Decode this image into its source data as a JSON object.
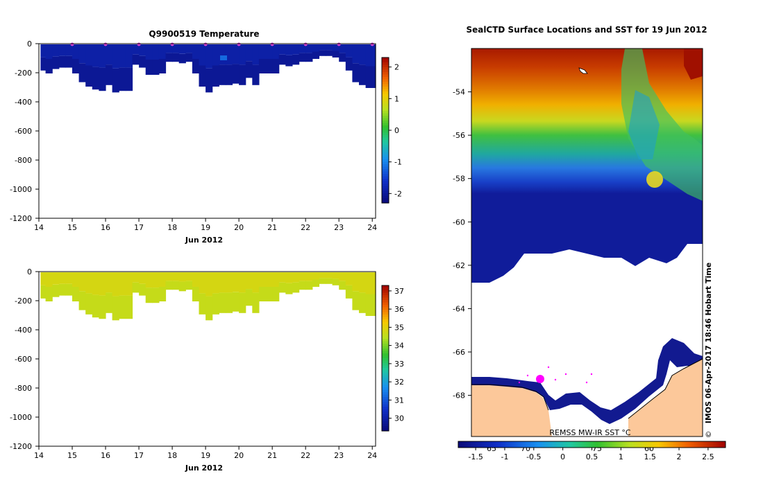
{
  "chart_data": [
    {
      "type": "heatmap",
      "title": "Q9900519  Temperature",
      "xlabel": "Jun 2012",
      "ylabel": "",
      "xlim": [
        14,
        24.1
      ],
      "ylim": [
        -1200,
        0
      ],
      "x_ticks": [
        "14",
        "15",
        "16",
        "17",
        "18",
        "19",
        "20",
        "21",
        "22",
        "23",
        "24"
      ],
      "y_ticks": [
        "0",
        "-200",
        "-400",
        "-600",
        "-800",
        "-1000",
        "-1200"
      ],
      "colorbar": {
        "range": [
          -2.3,
          2.3
        ],
        "ticks": [
          "2",
          "1",
          "0",
          "-1",
          "-2"
        ]
      },
      "profiles": {
        "day": [
          14.1,
          14.3,
          14.5,
          14.7,
          14.9,
          15.1,
          15.3,
          15.5,
          15.7,
          15.9,
          16.1,
          16.3,
          16.5,
          16.7,
          16.9,
          17.1,
          17.3,
          17.5,
          17.7,
          17.9,
          18.1,
          18.3,
          18.5,
          18.7,
          18.9,
          19.1,
          19.3,
          19.5,
          19.7,
          19.9,
          20.1,
          20.3,
          20.5,
          20.7,
          20.9,
          21.1,
          21.3,
          21.5,
          21.7,
          21.9,
          22.1,
          22.3,
          22.5,
          22.7,
          22.9,
          23.1,
          23.3,
          23.5,
          23.7,
          23.9,
          24.05
        ],
        "max_depth": [
          -180,
          -200,
          -170,
          -160,
          -160,
          -200,
          -260,
          -290,
          -310,
          -320,
          -280,
          -330,
          -320,
          -320,
          -140,
          -160,
          -210,
          -210,
          -200,
          -120,
          -120,
          -130,
          -120,
          -200,
          -290,
          -330,
          -290,
          -280,
          -280,
          -270,
          -280,
          -230,
          -280,
          -200,
          -200,
          -200,
          -140,
          -150,
          -140,
          -120,
          -120,
          -100,
          -80,
          -80,
          -90,
          -120,
          -180,
          -260,
          -280,
          -300,
          -300
        ],
        "surface_value": -1.9,
        "deep_value": -2.05
      },
      "surface_markers_day": [
        15,
        16,
        17,
        18,
        19,
        20,
        21,
        22,
        23,
        24
      ]
    },
    {
      "type": "heatmap",
      "title": "",
      "xlabel": "Jun 2012",
      "ylabel": "",
      "xlim": [
        14,
        24.1
      ],
      "ylim": [
        -1200,
        0
      ],
      "x_ticks": [
        "14",
        "15",
        "16",
        "17",
        "18",
        "19",
        "20",
        "21",
        "22",
        "23",
        "24"
      ],
      "y_ticks": [
        "0",
        "-200",
        "-400",
        "-600",
        "-800",
        "-1000",
        "-1200"
      ],
      "colorbar": {
        "range": [
          29.3,
          37.3
        ],
        "ticks": [
          "37",
          "36",
          "35",
          "34",
          "33",
          "32",
          "31",
          "30"
        ]
      },
      "profiles": {
        "surface_value": 34.8,
        "deep_value": 34.6
      }
    },
    {
      "type": "heatmap",
      "title": "SealCTD Surface Locations and SST for 19 Jun 2012",
      "xlabel": "",
      "ylabel": "",
      "ylim": [
        -69.9,
        -52.0
      ],
      "y_ticks": [
        "-54",
        "-56",
        "-58",
        "-60",
        "-62",
        "-64",
        "-66",
        "-68"
      ],
      "colorbar": {
        "range": [
          -1.8,
          2.8
        ],
        "ticks": [
          "-1.5",
          "-1",
          "-0.5",
          "0",
          "0.5",
          "1",
          "1.5",
          "2",
          "2.5"
        ]
      },
      "longitude_labels": [
        "65",
        "70",
        "75",
        "60"
      ],
      "annotation": "REMSS MW-IR SST °C",
      "credit": "IMOS 06-Apr-2017 18:46 Hobart Time",
      "copyright_symbol": "©"
    }
  ]
}
